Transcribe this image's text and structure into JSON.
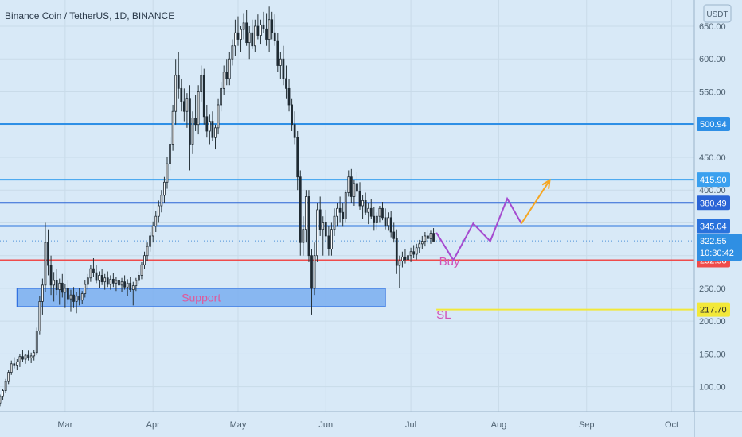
{
  "header": {
    "title": "Binance Coin / TetherUS, 1D, BINANCE"
  },
  "chart_data": {
    "type": "candlestick",
    "title": "Binance Coin / TetherUS, 1D, BINANCE",
    "currency_label": "USDT",
    "y_ticks": [
      100,
      150,
      200,
      250,
      300,
      350,
      400,
      450,
      500,
      550,
      600,
      650
    ],
    "y_tick_labels": [
      "100.00",
      "150.00",
      "200.00",
      "250.00",
      "300.00",
      "350.00",
      "400.00",
      "450.00",
      "500.00",
      "550.00",
      "600.00",
      "650.00"
    ],
    "x_ticks": [
      {
        "label": "Mar",
        "day": 29
      },
      {
        "label": "Apr",
        "day": 60
      },
      {
        "label": "May",
        "day": 90
      },
      {
        "label": "Jun",
        "day": 121
      },
      {
        "label": "Jul",
        "day": 151
      },
      {
        "label": "Aug",
        "day": 182
      },
      {
        "label": "Sep",
        "day": 213
      },
      {
        "label": "Oct",
        "day": 243
      }
    ],
    "ylim": [
      62,
      690
    ],
    "xlim": [
      6,
      251
    ],
    "current_price": {
      "value": 322.55,
      "label": "322.55",
      "countdown": "10:30:42"
    },
    "horizontal_levels": [
      {
        "value": 500.94,
        "label": "500.94",
        "color": "#2e8fe6"
      },
      {
        "value": 415.9,
        "label": "415.90",
        "color": "#3aa0ef"
      },
      {
        "value": 380.49,
        "label": "380.49",
        "color": "#2a64d6"
      },
      {
        "value": 345.04,
        "label": "345.04",
        "color": "#2a72dc"
      },
      {
        "value": 292.98,
        "label": "292.98",
        "color": "#ef4b4b"
      },
      {
        "value": 217.7,
        "label": "217.70",
        "color": "#f2e83a"
      }
    ],
    "support_zone": {
      "label": "Support",
      "x0": 12,
      "x1": 142,
      "y_low": 222,
      "y_high": 250
    },
    "annotations": [
      {
        "text": "Buy",
        "color": "#d152b8",
        "day": 161,
        "value": 285
      },
      {
        "text": "SL",
        "color": "#d152b8",
        "day": 160,
        "value": 204
      }
    ],
    "projection": {
      "segments": [
        {
          "color": "#a54bd0",
          "points": [
            [
              160,
              335
            ],
            [
              166,
              293
            ],
            [
              173,
              349
            ],
            [
              179,
              322
            ],
            [
              185,
              387
            ],
            [
              190,
              349
            ]
          ]
        },
        {
          "color": "#f5a623",
          "points": [
            [
              190,
              349
            ],
            [
              200,
              415
            ]
          ]
        }
      ],
      "arrow_color": "#f5a623"
    },
    "candles": [
      [
        6,
        75,
        88,
        70,
        85
      ],
      [
        7,
        85,
        96,
        80,
        94
      ],
      [
        8,
        94,
        112,
        90,
        108
      ],
      [
        9,
        108,
        125,
        104,
        122
      ],
      [
        10,
        122,
        140,
        118,
        135
      ],
      [
        11,
        135,
        145,
        128,
        132
      ],
      [
        12,
        132,
        142,
        125,
        138
      ],
      [
        13,
        138,
        150,
        130,
        146
      ],
      [
        14,
        146,
        156,
        138,
        142
      ],
      [
        15,
        142,
        150,
        135,
        148
      ],
      [
        16,
        148,
        155,
        140,
        144
      ],
      [
        17,
        144,
        152,
        136,
        147
      ],
      [
        18,
        147,
        156,
        140,
        152
      ],
      [
        19,
        152,
        190,
        148,
        185
      ],
      [
        20,
        185,
        238,
        180,
        230
      ],
      [
        21,
        230,
        265,
        210,
        255
      ],
      [
        22,
        255,
        350,
        245,
        320
      ],
      [
        23,
        320,
        340,
        270,
        285
      ],
      [
        24,
        285,
        300,
        240,
        255
      ],
      [
        25,
        255,
        275,
        230,
        262
      ],
      [
        26,
        262,
        280,
        240,
        248
      ],
      [
        27,
        248,
        265,
        225,
        258
      ],
      [
        28,
        258,
        272,
        236,
        244
      ],
      [
        29,
        244,
        256,
        220,
        250
      ],
      [
        30,
        250,
        262,
        226,
        234
      ],
      [
        31,
        234,
        248,
        214,
        240
      ],
      [
        32,
        240,
        252,
        220,
        230
      ],
      [
        33,
        230,
        244,
        212,
        238
      ],
      [
        34,
        238,
        250,
        224,
        232
      ],
      [
        35,
        232,
        246,
        226,
        242
      ],
      [
        36,
        242,
        262,
        236,
        256
      ],
      [
        37,
        256,
        272,
        248,
        266
      ],
      [
        38,
        266,
        286,
        260,
        280
      ],
      [
        39,
        280,
        296,
        268,
        274
      ],
      [
        40,
        274,
        285,
        258,
        262
      ],
      [
        41,
        262,
        276,
        250,
        270
      ],
      [
        42,
        270,
        280,
        255,
        260
      ],
      [
        43,
        260,
        272,
        248,
        266
      ],
      [
        44,
        266,
        276,
        252,
        256
      ],
      [
        45,
        256,
        270,
        248,
        264
      ],
      [
        46,
        264,
        274,
        252,
        258
      ],
      [
        47,
        258,
        268,
        246,
        262
      ],
      [
        48,
        262,
        272,
        250,
        255
      ],
      [
        49,
        255,
        266,
        244,
        260
      ],
      [
        50,
        260,
        270,
        248,
        252
      ],
      [
        51,
        252,
        264,
        238,
        258
      ],
      [
        52,
        258,
        268,
        244,
        248
      ],
      [
        53,
        248,
        260,
        224,
        254
      ],
      [
        54,
        254,
        266,
        246,
        262
      ],
      [
        55,
        262,
        276,
        256,
        270
      ],
      [
        56,
        270,
        290,
        264,
        286
      ],
      [
        57,
        286,
        306,
        280,
        300
      ],
      [
        58,
        300,
        320,
        292,
        314
      ],
      [
        59,
        314,
        336,
        306,
        330
      ],
      [
        60,
        330,
        352,
        320,
        345
      ],
      [
        61,
        345,
        368,
        336,
        360
      ],
      [
        62,
        360,
        384,
        350,
        376
      ],
      [
        63,
        376,
        400,
        366,
        392
      ],
      [
        64,
        392,
        420,
        380,
        412
      ],
      [
        65,
        412,
        450,
        402,
        440
      ],
      [
        66,
        440,
        480,
        430,
        470
      ],
      [
        67,
        470,
        530,
        460,
        520
      ],
      [
        68,
        520,
        600,
        500,
        575
      ],
      [
        69,
        575,
        610,
        540,
        555
      ],
      [
        70,
        555,
        570,
        520,
        535
      ],
      [
        71,
        535,
        555,
        505,
        520
      ],
      [
        72,
        520,
        548,
        495,
        540
      ],
      [
        73,
        540,
        560,
        430,
        470
      ],
      [
        74,
        470,
        520,
        455,
        510
      ],
      [
        75,
        510,
        545,
        490,
        500
      ],
      [
        76,
        500,
        560,
        485,
        550
      ],
      [
        77,
        550,
        590,
        535,
        575
      ],
      [
        78,
        575,
        585,
        500,
        512
      ],
      [
        79,
        512,
        530,
        480,
        490
      ],
      [
        80,
        490,
        515,
        470,
        505
      ],
      [
        81,
        505,
        520,
        475,
        480
      ],
      [
        82,
        480,
        500,
        462,
        495
      ],
      [
        83,
        495,
        540,
        485,
        530
      ],
      [
        84,
        530,
        565,
        520,
        555
      ],
      [
        85,
        555,
        590,
        545,
        580
      ],
      [
        86,
        580,
        600,
        560,
        570
      ],
      [
        87,
        570,
        610,
        560,
        600
      ],
      [
        88,
        600,
        630,
        590,
        620
      ],
      [
        89,
        620,
        660,
        605,
        640
      ],
      [
        90,
        640,
        665,
        620,
        630
      ],
      [
        91,
        630,
        650,
        610,
        645
      ],
      [
        92,
        645,
        670,
        630,
        655
      ],
      [
        93,
        655,
        675,
        620,
        625
      ],
      [
        94,
        625,
        650,
        600,
        640
      ],
      [
        95,
        640,
        660,
        615,
        620
      ],
      [
        96,
        620,
        660,
        610,
        650
      ],
      [
        97,
        650,
        668,
        630,
        636
      ],
      [
        98,
        636,
        660,
        622,
        652
      ],
      [
        99,
        652,
        672,
        640,
        646
      ],
      [
        100,
        646,
        670,
        620,
        630
      ],
      [
        101,
        630,
        680,
        610,
        660
      ],
      [
        102,
        660,
        672,
        630,
        640
      ],
      [
        103,
        640,
        668,
        620,
        628
      ],
      [
        104,
        628,
        640,
        580,
        590
      ],
      [
        105,
        590,
        610,
        570,
        600
      ],
      [
        106,
        600,
        620,
        560,
        570
      ],
      [
        107,
        570,
        590,
        540,
        555
      ],
      [
        108,
        555,
        570,
        520,
        530
      ],
      [
        109,
        530,
        540,
        490,
        500
      ],
      [
        110,
        500,
        520,
        470,
        480
      ],
      [
        111,
        480,
        490,
        400,
        420
      ],
      [
        112,
        420,
        430,
        300,
        320
      ],
      [
        113,
        320,
        360,
        300,
        340
      ],
      [
        114,
        340,
        400,
        320,
        390
      ],
      [
        115,
        390,
        400,
        290,
        300
      ],
      [
        116,
        300,
        310,
        210,
        250
      ],
      [
        117,
        250,
        320,
        240,
        300
      ],
      [
        118,
        300,
        380,
        290,
        370
      ],
      [
        119,
        370,
        390,
        330,
        340
      ],
      [
        120,
        340,
        360,
        300,
        350
      ],
      [
        121,
        350,
        370,
        320,
        330
      ],
      [
        122,
        330,
        345,
        300,
        310
      ],
      [
        123,
        310,
        350,
        300,
        340
      ],
      [
        124,
        340,
        372,
        330,
        360
      ],
      [
        125,
        360,
        380,
        344,
        372
      ],
      [
        126,
        372,
        390,
        350,
        366
      ],
      [
        127,
        366,
        380,
        344,
        356
      ],
      [
        128,
        356,
        400,
        350,
        396
      ],
      [
        129,
        396,
        430,
        390,
        420
      ],
      [
        130,
        420,
        432,
        380,
        390
      ],
      [
        131,
        390,
        416,
        376,
        410
      ],
      [
        132,
        410,
        428,
        390,
        398
      ],
      [
        133,
        398,
        412,
        370,
        376
      ],
      [
        134,
        376,
        392,
        356,
        384
      ],
      [
        135,
        384,
        396,
        362,
        366
      ],
      [
        136,
        366,
        380,
        348,
        372
      ],
      [
        137,
        372,
        386,
        356,
        360
      ],
      [
        138,
        360,
        374,
        338,
        350
      ],
      [
        139,
        350,
        366,
        340,
        360
      ],
      [
        140,
        360,
        376,
        350,
        372
      ],
      [
        141,
        372,
        382,
        354,
        358
      ],
      [
        142,
        358,
        372,
        340,
        346
      ],
      [
        143,
        346,
        366,
        338,
        358
      ],
      [
        144,
        358,
        368,
        328,
        336
      ],
      [
        145,
        336,
        350,
        320,
        326
      ],
      [
        146,
        326,
        340,
        272,
        285
      ],
      [
        147,
        285,
        300,
        250,
        292
      ],
      [
        148,
        292,
        306,
        282,
        298
      ],
      [
        149,
        298,
        310,
        288,
        294
      ],
      [
        150,
        294,
        306,
        285,
        300
      ],
      [
        151,
        300,
        312,
        290,
        306
      ],
      [
        152,
        306,
        316,
        296,
        302
      ],
      [
        153,
        302,
        318,
        294,
        312
      ],
      [
        154,
        312,
        324,
        304,
        318
      ],
      [
        155,
        318,
        330,
        310,
        322
      ],
      [
        156,
        322,
        336,
        314,
        330
      ],
      [
        157,
        330,
        340,
        318,
        326
      ],
      [
        158,
        326,
        338,
        318,
        334
      ],
      [
        159,
        334,
        342,
        324,
        322
      ]
    ]
  }
}
